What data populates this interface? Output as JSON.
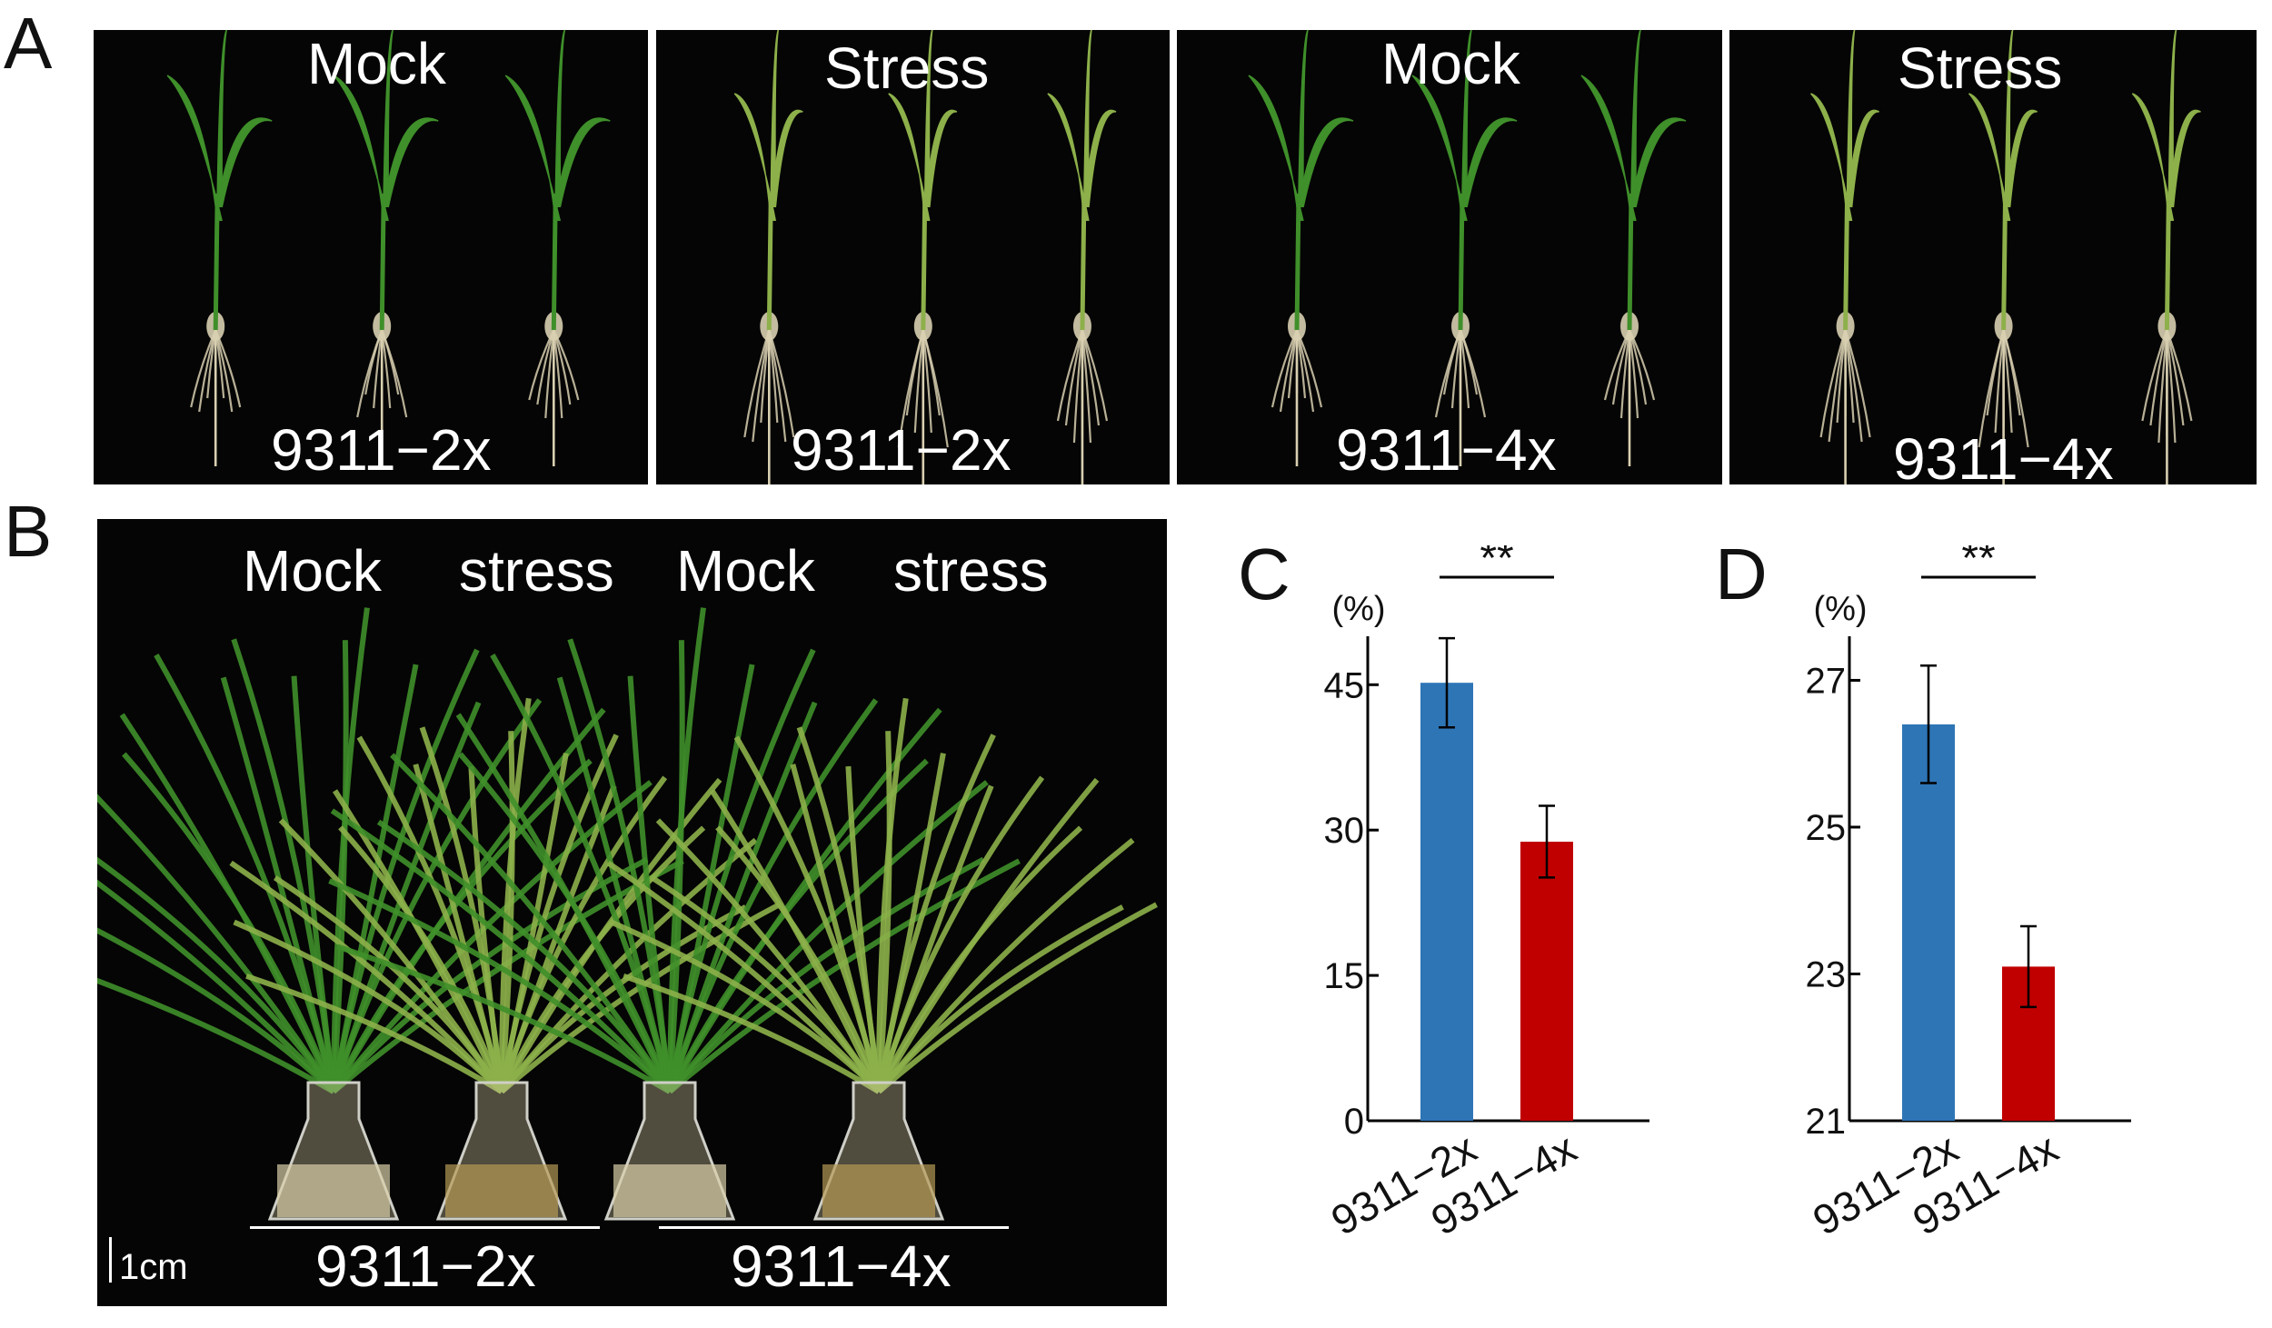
{
  "panels": {
    "A": {
      "letter": "A",
      "subpanels": [
        {
          "condition": "Mock",
          "genotype": "9311−2x"
        },
        {
          "condition": "Stress",
          "genotype": "9311−2x"
        },
        {
          "condition": "Mock",
          "genotype": "9311−4x"
        },
        {
          "condition": "Stress",
          "genotype": "9311−4x"
        }
      ]
    },
    "B": {
      "letter": "B",
      "conditions": [
        "Mock",
        "stress",
        "Mock",
        "stress"
      ],
      "genotypes": [
        "9311−2x",
        "9311−4x"
      ],
      "scale_bar": "1cm"
    },
    "C": {
      "letter": "C"
    },
    "D": {
      "letter": "D"
    }
  },
  "colors": {
    "bar_2x": "#2e75b6",
    "bar_4x": "#c00000",
    "plant_green": "#3f8f2a",
    "stressed_green": "#8db04a",
    "root": "#d8cfb0"
  },
  "chart_data": [
    {
      "type": "bar",
      "panel": "C",
      "unit_label": "(%)",
      "categories": [
        "9311−2x",
        "9311−4x"
      ],
      "values": [
        45.2,
        28.8
      ],
      "errors": [
        4.6,
        3.7
      ],
      "yticks": [
        0,
        15,
        30,
        45
      ],
      "ylim": [
        0,
        50
      ],
      "significance": "**"
    },
    {
      "type": "bar",
      "panel": "D",
      "unit_label": "(%)",
      "categories": [
        "9311−2x",
        "9311−4x"
      ],
      "values": [
        26.4,
        23.1
      ],
      "errors": [
        0.8,
        0.55
      ],
      "yticks": [
        21,
        23,
        25,
        27
      ],
      "ylim": [
        21,
        27.6
      ],
      "significance": "**"
    }
  ]
}
